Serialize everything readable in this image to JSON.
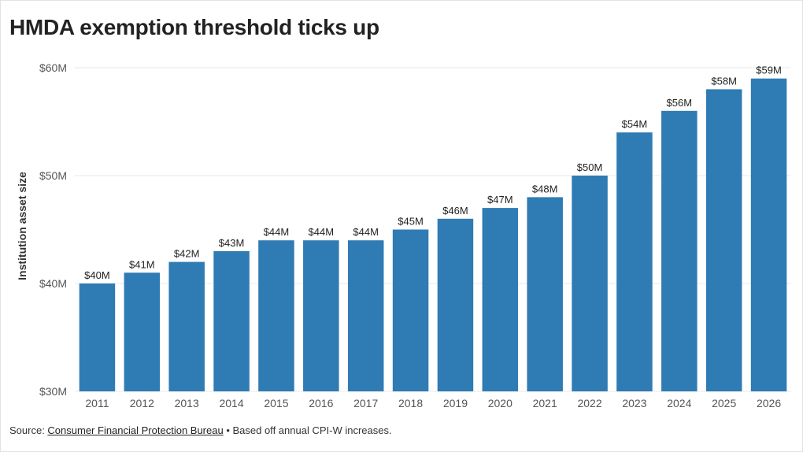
{
  "title": "HMDA exemption threshold ticks up",
  "caption": {
    "prefix": "Source: ",
    "source_link": "Consumer Financial Protection Bureau",
    "bullet": " • ",
    "note": "Based off annual CPI-W increases."
  },
  "colors": {
    "bar": "#2f7bb4",
    "grid": "#e8e8e8",
    "text": "#333333"
  },
  "chart_data": {
    "type": "bar",
    "title": "HMDA exemption threshold ticks up",
    "xlabel": "",
    "ylabel": "Institution asset size",
    "categories": [
      "2011",
      "2012",
      "2013",
      "2014",
      "2015",
      "2016",
      "2017",
      "2018",
      "2019",
      "2020",
      "2021",
      "2022",
      "2023",
      "2024",
      "2025",
      "2026"
    ],
    "values": [
      40,
      41,
      42,
      43,
      44,
      44,
      44,
      45,
      46,
      47,
      48,
      50,
      54,
      56,
      58,
      59
    ],
    "data_labels": [
      "$40M",
      "$41M",
      "$42M",
      "$43M",
      "$44M",
      "$44M",
      "$44M",
      "$45M",
      "$46M",
      "$47M",
      "$48M",
      "$50M",
      "$54M",
      "$56M",
      "$58M",
      "$59M"
    ],
    "ylim": [
      30,
      60
    ],
    "yticks": [
      30,
      40,
      50,
      60
    ],
    "ytick_labels": [
      "$30M",
      "$40M",
      "$50M",
      "$60M"
    ],
    "grid": true,
    "legend": "none"
  }
}
